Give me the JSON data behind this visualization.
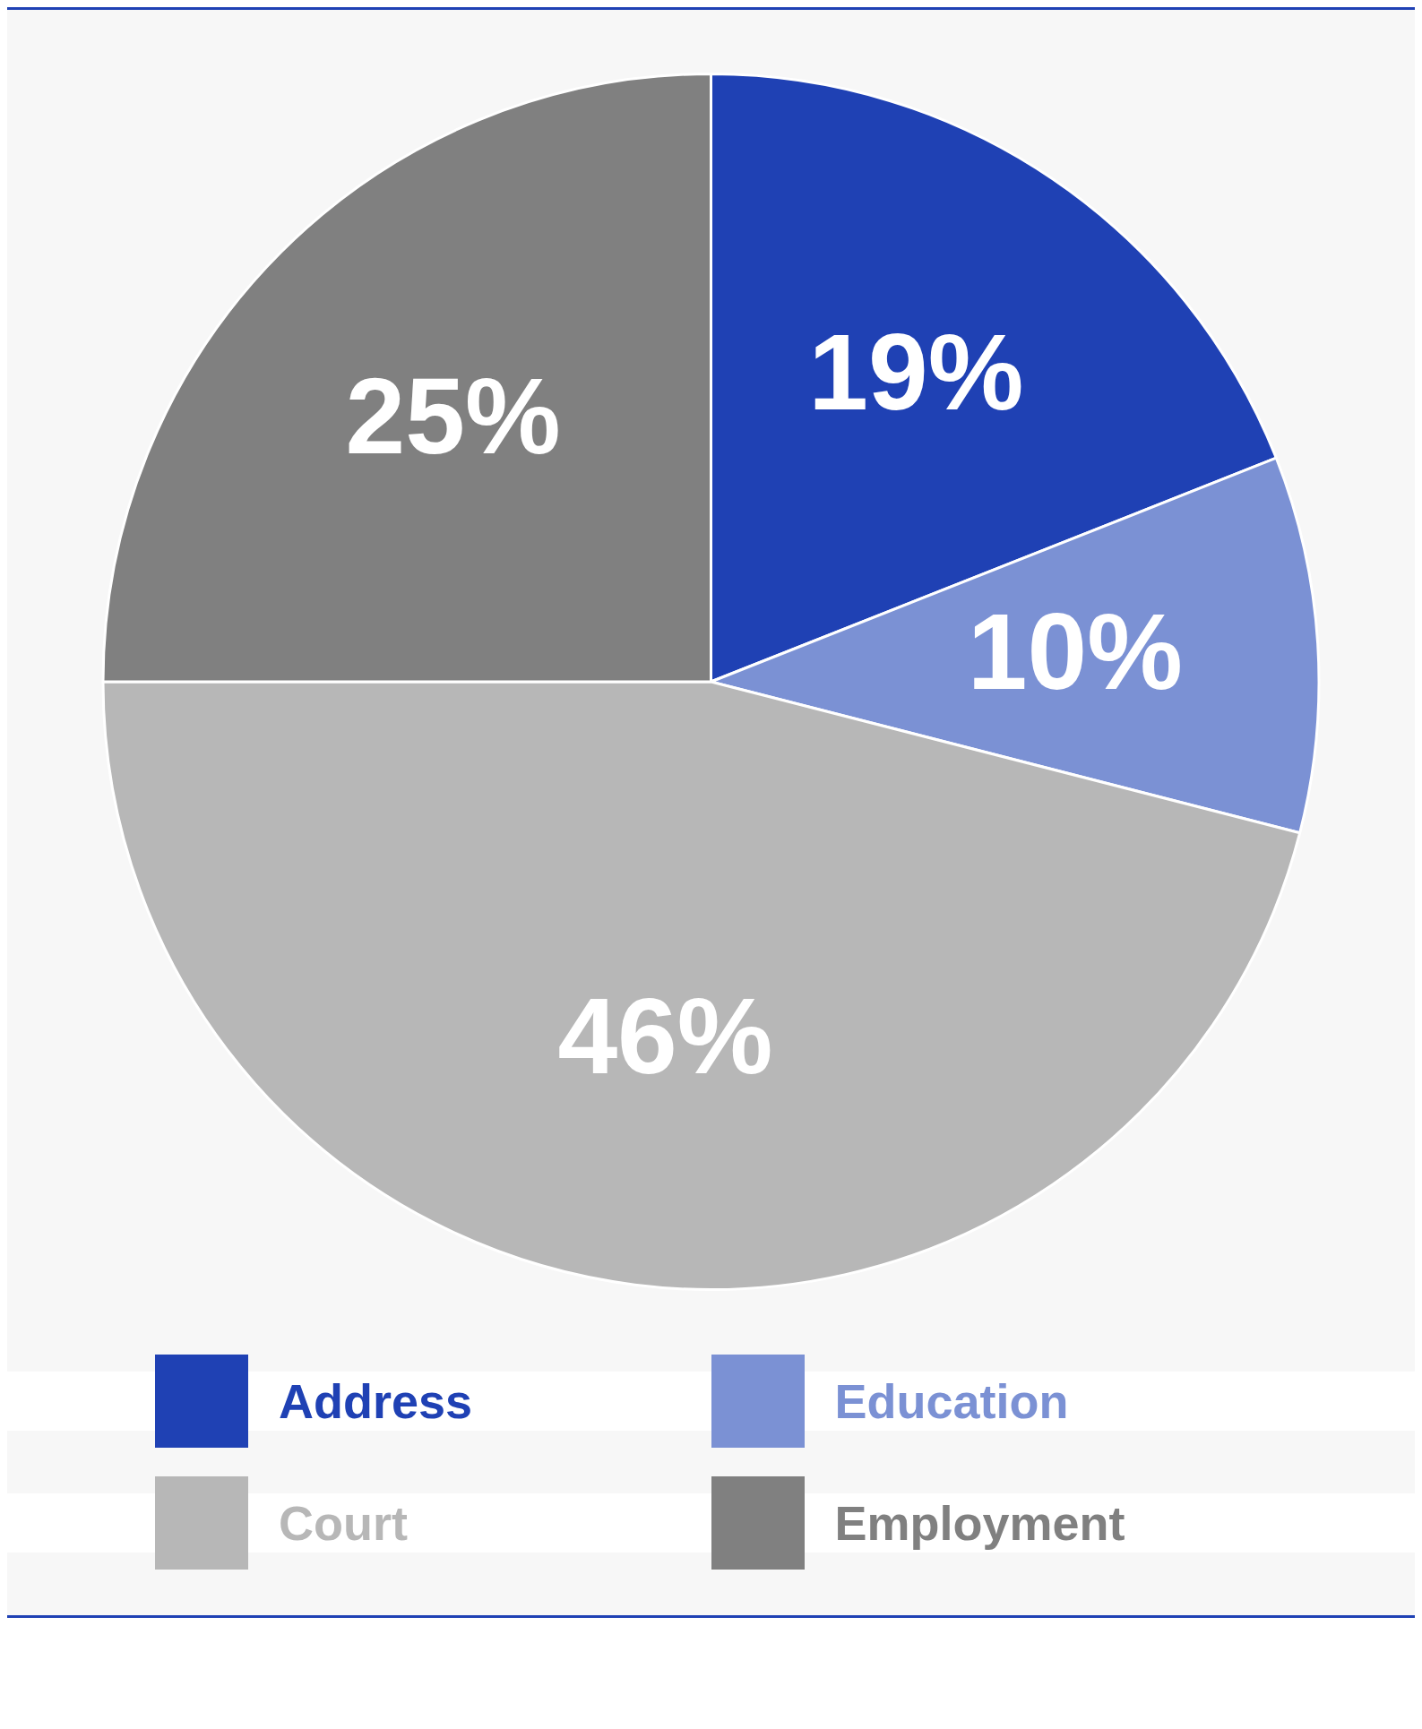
{
  "chart_data": {
    "type": "pie",
    "categories": [
      "Address",
      "Education",
      "Court",
      "Employment"
    ],
    "values": [
      19,
      10,
      46,
      25
    ],
    "colors": [
      "#1f41b4",
      "#7b91d4",
      "#b7b7b7",
      "#808080"
    ],
    "value_labels": [
      "19%",
      "10%",
      "46%",
      "25%"
    ],
    "legend": "bottom"
  }
}
